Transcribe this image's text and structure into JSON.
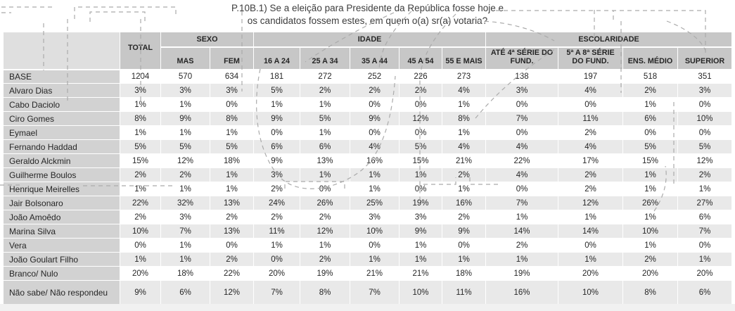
{
  "page": {
    "title_line1": "P.10B.1) Se a eleição para Presidente da República fosse hoje e",
    "title_line2": "os candidatos fossem estes, em quem o(a) sr(a) votaria?"
  },
  "colors": {
    "header_bg": "#c7c7c7",
    "corner_bg": "#dfdfdf",
    "label_column_bg": "#d2d2d2",
    "zebra_row_bg": "#e9e9e9",
    "white_row_bg": "#ffffff",
    "gridline": "#ffffff",
    "annotation_dash": "#ababab",
    "footer_strip_bg": "#f1f1f1",
    "text": "#262626"
  },
  "chart_data": {
    "type": "table",
    "title": "P.10B.1) Se a eleição para Presidente da República fosse hoje e os candidatos fossem estes, em quem o(a) sr(a) votaria?",
    "column_groups": [
      {
        "label": "SEXO",
        "span": 2
      },
      {
        "label": "IDADE",
        "span": 5
      },
      {
        "label": "ESCOLARIDADE",
        "span": 4
      }
    ],
    "columns": [
      "TOTAL",
      "MAS",
      "FEM",
      "16 A 24",
      "25 A 34",
      "35 A 44",
      "45 A 54",
      "55 E MAIS",
      "ATÉ 4ª SÉRIE DO FUND.",
      "5ª A 8ª SÉRIE DO FUND.",
      "ENS. MÉDIO",
      "SUPERIOR"
    ],
    "rows": [
      {
        "label": "BASE",
        "values": [
          "1204",
          "570",
          "634",
          "181",
          "272",
          "252",
          "226",
          "273",
          "138",
          "197",
          "518",
          "351"
        ]
      },
      {
        "label": "Alvaro Dias",
        "values": [
          "3%",
          "3%",
          "3%",
          "5%",
          "2%",
          "2%",
          "2%",
          "4%",
          "3%",
          "4%",
          "2%",
          "3%"
        ]
      },
      {
        "label": "Cabo Daciolo",
        "values": [
          "1%",
          "1%",
          "0%",
          "1%",
          "1%",
          "0%",
          "0%",
          "1%",
          "0%",
          "0%",
          "1%",
          "0%"
        ]
      },
      {
        "label": "Ciro Gomes",
        "values": [
          "8%",
          "9%",
          "8%",
          "9%",
          "5%",
          "9%",
          "12%",
          "8%",
          "7%",
          "11%",
          "6%",
          "10%"
        ]
      },
      {
        "label": "Eymael",
        "values": [
          "1%",
          "1%",
          "1%",
          "0%",
          "1%",
          "0%",
          "0%",
          "1%",
          "0%",
          "2%",
          "0%",
          "0%"
        ]
      },
      {
        "label": "Fernando Haddad",
        "values": [
          "5%",
          "5%",
          "5%",
          "6%",
          "6%",
          "4%",
          "5%",
          "4%",
          "4%",
          "4%",
          "5%",
          "5%"
        ]
      },
      {
        "label": "Geraldo Alckmin",
        "values": [
          "15%",
          "12%",
          "18%",
          "9%",
          "13%",
          "16%",
          "15%",
          "21%",
          "22%",
          "17%",
          "15%",
          "12%"
        ]
      },
      {
        "label": "Guilherme Boulos",
        "values": [
          "2%",
          "2%",
          "1%",
          "3%",
          "1%",
          "1%",
          "1%",
          "2%",
          "4%",
          "2%",
          "1%",
          "2%"
        ]
      },
      {
        "label": "Henrique Meirelles",
        "values": [
          "1%",
          "1%",
          "1%",
          "2%",
          "0%",
          "1%",
          "0%",
          "1%",
          "0%",
          "2%",
          "1%",
          "1%"
        ]
      },
      {
        "label": "Jair Bolsonaro",
        "values": [
          "22%",
          "32%",
          "13%",
          "24%",
          "26%",
          "25%",
          "19%",
          "16%",
          "7%",
          "12%",
          "26%",
          "27%"
        ]
      },
      {
        "label": "João Amoêdo",
        "values": [
          "2%",
          "3%",
          "2%",
          "2%",
          "2%",
          "3%",
          "3%",
          "2%",
          "1%",
          "1%",
          "1%",
          "6%"
        ]
      },
      {
        "label": "Marina Silva",
        "values": [
          "10%",
          "7%",
          "13%",
          "11%",
          "12%",
          "10%",
          "9%",
          "9%",
          "14%",
          "14%",
          "10%",
          "7%"
        ]
      },
      {
        "label": "Vera",
        "values": [
          "0%",
          "1%",
          "0%",
          "1%",
          "1%",
          "0%",
          "1%",
          "0%",
          "2%",
          "0%",
          "1%",
          "0%"
        ]
      },
      {
        "label": "João Goulart Filho",
        "values": [
          "1%",
          "1%",
          "2%",
          "0%",
          "2%",
          "1%",
          "1%",
          "1%",
          "1%",
          "1%",
          "2%",
          "1%"
        ]
      },
      {
        "label": "Branco/ Nulo",
        "values": [
          "20%",
          "18%",
          "22%",
          "20%",
          "19%",
          "21%",
          "21%",
          "18%",
          "19%",
          "20%",
          "20%",
          "20%"
        ]
      },
      {
        "label": "Não sabe/ Não respondeu",
        "values": [
          "9%",
          "6%",
          "12%",
          "7%",
          "8%",
          "7%",
          "10%",
          "11%",
          "16%",
          "10%",
          "8%",
          "6%"
        ]
      }
    ]
  }
}
